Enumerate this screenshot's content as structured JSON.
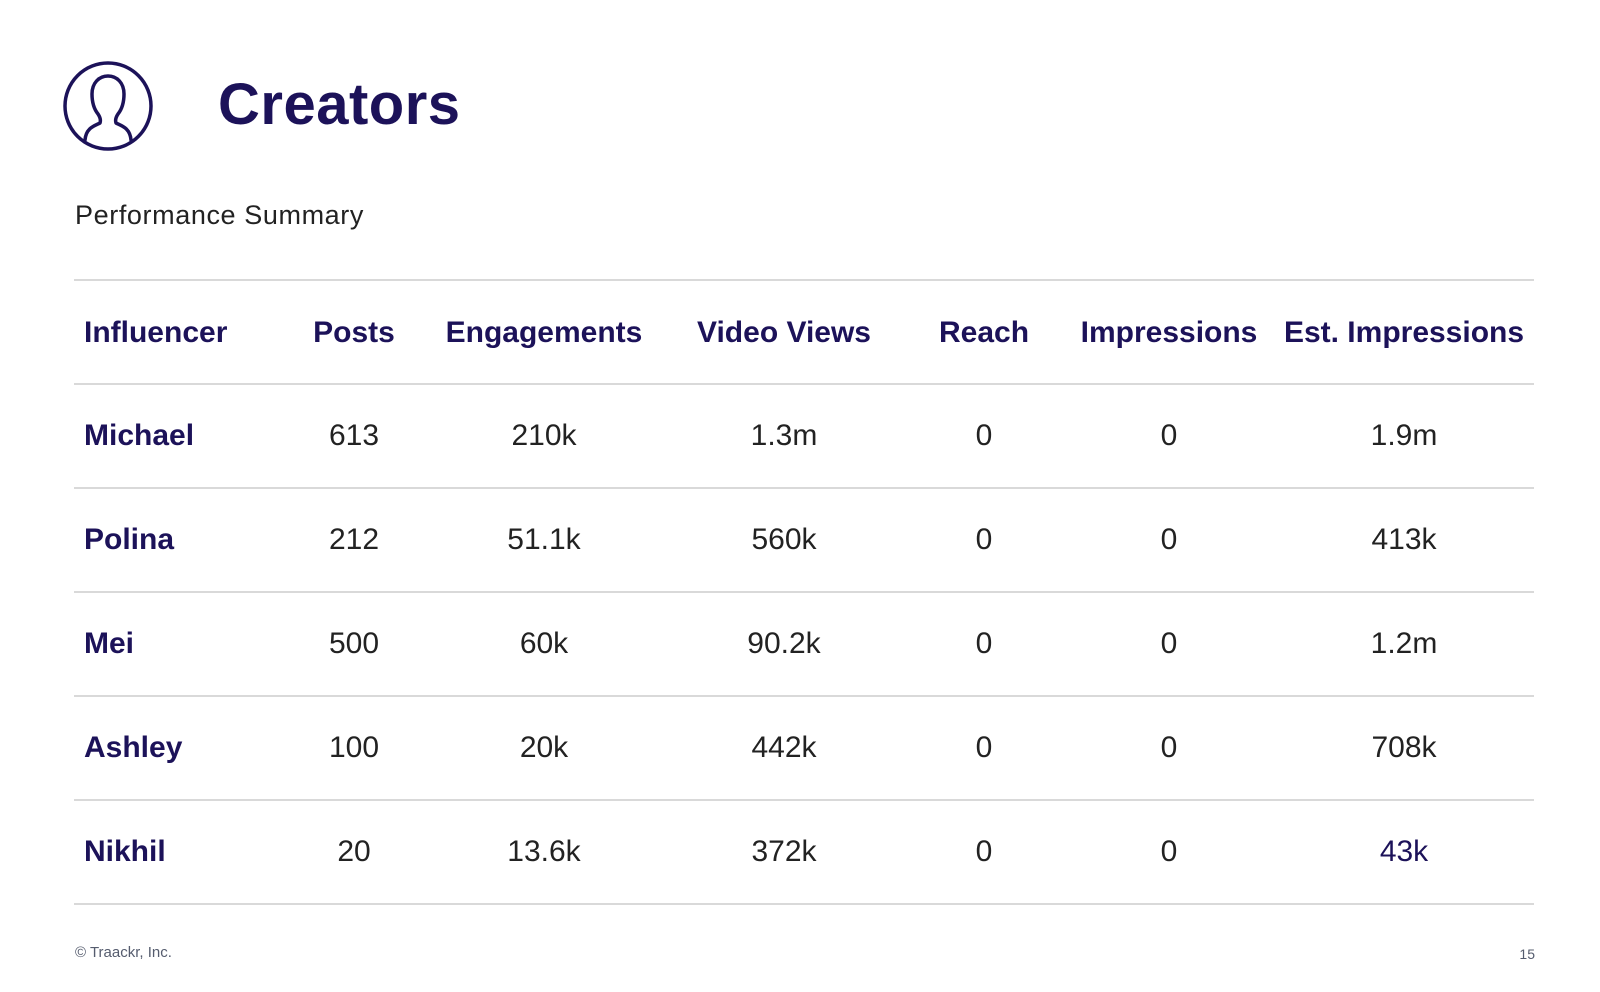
{
  "header": {
    "title": "Creators",
    "icon": "user-circle-icon",
    "accent_color": "#1c1259"
  },
  "subtitle": "Performance Summary",
  "table": {
    "columns": [
      "Influencer",
      "Posts",
      "Engagements",
      "Video Views",
      "Reach",
      "Impressions",
      "Est. Impressions"
    ],
    "rows": [
      [
        "Michael",
        "613",
        "210k",
        "1.3m",
        "0",
        "0",
        "1.9m"
      ],
      [
        "Polina",
        "212",
        "51.1k",
        "560k",
        "0",
        "0",
        "413k"
      ],
      [
        "Mei",
        "500",
        "60k",
        "90.2k",
        "0",
        "0",
        "1.2m"
      ],
      [
        "Ashley",
        "100",
        "20k",
        "442k",
        "0",
        "0",
        "708k"
      ],
      [
        "Nikhil",
        "20",
        "13.6k",
        "372k",
        "0",
        "0",
        "43k"
      ]
    ]
  },
  "footer": {
    "copyright": "© Traackr, Inc.",
    "page_number": "15"
  }
}
